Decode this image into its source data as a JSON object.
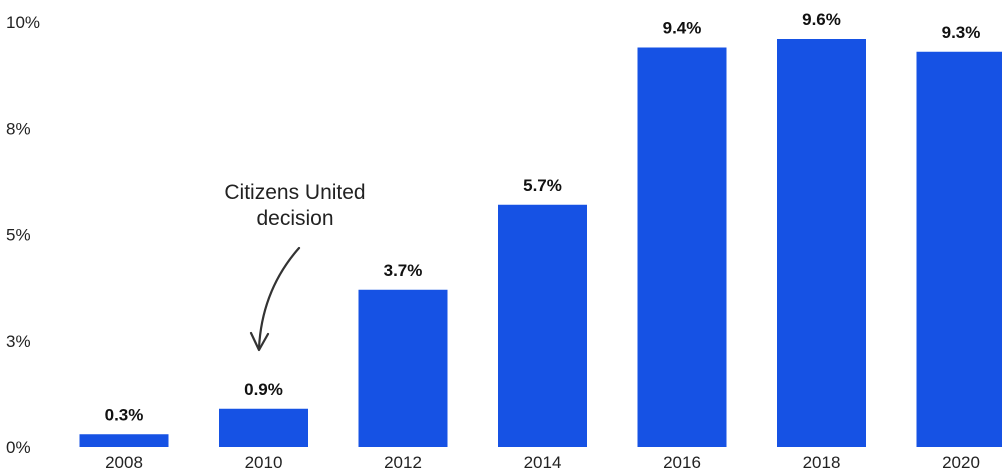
{
  "chart_data": {
    "type": "bar",
    "title": "",
    "xlabel": "",
    "ylabel": "",
    "categories": [
      "2008",
      "2010",
      "2012",
      "2014",
      "2016",
      "2018",
      "2020"
    ],
    "values": [
      0.3,
      0.9,
      3.7,
      5.7,
      9.4,
      9.6,
      9.3
    ],
    "data_labels": [
      "0.3%",
      "0.9%",
      "3.7%",
      "5.7%",
      "9.4%",
      "9.6%",
      "9.3%"
    ],
    "y_ticks": [
      {
        "value": 0,
        "label": "0%"
      },
      {
        "value": 2.5,
        "label": "3%"
      },
      {
        "value": 5,
        "label": "5%"
      },
      {
        "value": 7.5,
        "label": "8%"
      },
      {
        "value": 10,
        "label": "10%"
      }
    ],
    "ylim": [
      0,
      10
    ],
    "grid": false,
    "legend": "none",
    "bar_color": "#1652E4",
    "annotation": {
      "lines": [
        "Citizens United",
        "decision"
      ],
      "target_category": "2010"
    }
  }
}
